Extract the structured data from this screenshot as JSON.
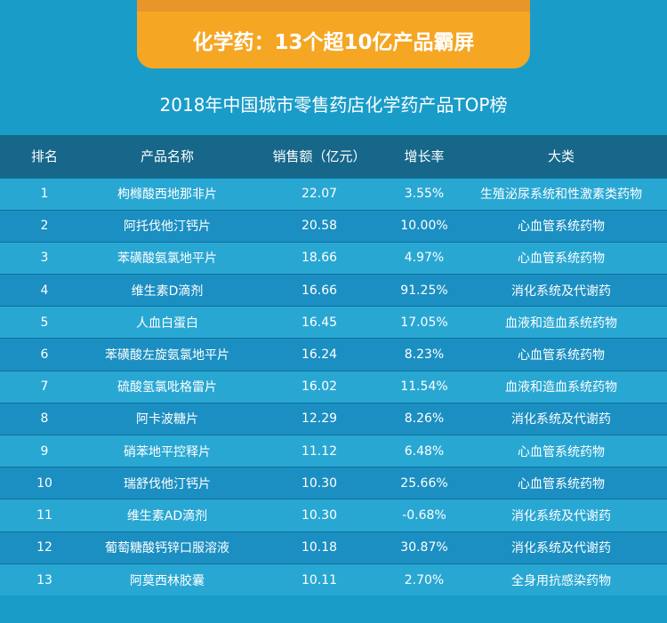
{
  "banner": {
    "title": "化学药：13个超10亿产品霸屏"
  },
  "chart_data": {
    "type": "table",
    "title": "2018年中国城市零售药店化学药产品TOP榜",
    "columns": [
      "排名",
      "产品名称",
      "销售额（亿元）",
      "增长率",
      "大类"
    ],
    "rows": [
      [
        "1",
        "枸橼酸西地那非片",
        "22.07",
        "3.55%",
        "生殖泌尿系统和性激素类药物"
      ],
      [
        "2",
        "阿托伐他汀钙片",
        "20.58",
        "10.00%",
        "心血管系统药物"
      ],
      [
        "3",
        "苯磺酸氨氯地平片",
        "18.66",
        "4.97%",
        "心血管系统药物"
      ],
      [
        "4",
        "维生素D滴剂",
        "16.66",
        "91.25%",
        "消化系统及代谢药"
      ],
      [
        "5",
        "人血白蛋白",
        "16.45",
        "17.05%",
        "血液和造血系统药物"
      ],
      [
        "6",
        "苯磺酸左旋氨氯地平片",
        "16.24",
        "8.23%",
        "心血管系统药物"
      ],
      [
        "7",
        "硫酸氢氯吡格雷片",
        "16.02",
        "11.54%",
        "血液和造血系统药物"
      ],
      [
        "8",
        "阿卡波糖片",
        "12.29",
        "8.26%",
        "消化系统及代谢药"
      ],
      [
        "9",
        "硝苯地平控释片",
        "11.12",
        "6.48%",
        "心血管系统药物"
      ],
      [
        "10",
        "瑞舒伐他汀钙片",
        "10.30",
        "25.66%",
        "心血管系统药物"
      ],
      [
        "11",
        "维生素AD滴剂",
        "10.30",
        "-0.68%",
        "消化系统及代谢药"
      ],
      [
        "12",
        "葡萄糖酸钙锌口服溶液",
        "10.18",
        "30.87%",
        "消化系统及代谢药"
      ],
      [
        "13",
        "阿莫西林胶囊",
        "10.11",
        "2.70%",
        "全身用抗感染药物"
      ]
    ]
  },
  "colors": {
    "background": "#1a9cc9",
    "banner": "#f5a623",
    "header_row": "#16678a",
    "row_light": "#29a7d3",
    "row_dark": "#1b8fc2"
  }
}
